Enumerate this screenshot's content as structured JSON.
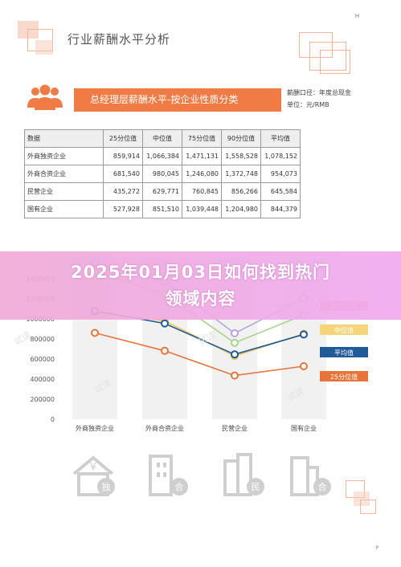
{
  "header": {
    "corner_letter": "H",
    "title": "行业薪酬水平分析",
    "page_letter": "P"
  },
  "banner": {
    "title": "总经理层薪酬水平-按企业性质分类",
    "caliber_label": "薪酬口径：年度总现金",
    "unit_label": "单位：元/RMB"
  },
  "table": {
    "headers": [
      "数据",
      "25分位值",
      "中位值",
      "75分位值",
      "90分位值",
      "平均值"
    ],
    "rows": [
      [
        "外商独资企业",
        "859,914",
        "1,066,384",
        "1,471,131",
        "1,558,528",
        "1,078,152"
      ],
      [
        "外商合资企业",
        "681,540",
        "980,045",
        "1,246,080",
        "1,372,748",
        "954,073"
      ],
      [
        "民营企业",
        "435,272",
        "629,771",
        "760,845",
        "856,266",
        "645,584"
      ],
      [
        "国有企业",
        "527,928",
        "851,510",
        "1,039,448",
        "1,204,980",
        "844,379"
      ]
    ]
  },
  "overlay": {
    "line1": "2025年01月03日如何找到热门",
    "line2": "领域内容"
  },
  "chart_data": {
    "type": "line",
    "categories": [
      "外商独资企业",
      "外商合资企业",
      "民营企业",
      "国有企业"
    ],
    "ylim": [
      0,
      1600000
    ],
    "yticks": [
      "0",
      "200000",
      "400000",
      "600000",
      "800000",
      "1000000",
      "1200000",
      "1400000"
    ],
    "series": [
      {
        "name": "25分位值",
        "color": "#e8743a",
        "values": [
          859914,
          681540,
          435272,
          527928
        ]
      },
      {
        "name": "中位值",
        "color": "#f2c65a",
        "values": [
          1066384,
          980045,
          629771,
          851510
        ]
      },
      {
        "name": "平均值",
        "color": "#1f5a99",
        "values": [
          1078152,
          954073,
          645584,
          844379
        ]
      },
      {
        "name": "75分位值",
        "color": "#a8d38a",
        "values": [
          1471131,
          1246080,
          760845,
          1039448
        ]
      },
      {
        "name": "90分位值",
        "color": "#b7a4e0",
        "values": [
          1558528,
          1372748,
          856266,
          1204980
        ]
      }
    ],
    "legend": [
      {
        "label": "75分位值",
        "color": "#f2a27a"
      },
      {
        "label": "中位值",
        "color": "#f6d47a"
      },
      {
        "label": "平均值",
        "color": "#1f5a99"
      },
      {
        "label": "25分位值",
        "color": "#e8743a"
      }
    ]
  },
  "bottom_icons": [
    {
      "name": "foreign-owned-icon",
      "char": "独"
    },
    {
      "name": "foreign-joint-icon",
      "char": "合"
    },
    {
      "name": "private-icon",
      "char": "民"
    },
    {
      "name": "state-owned-icon",
      "char": "合"
    }
  ],
  "watermark": "试读"
}
